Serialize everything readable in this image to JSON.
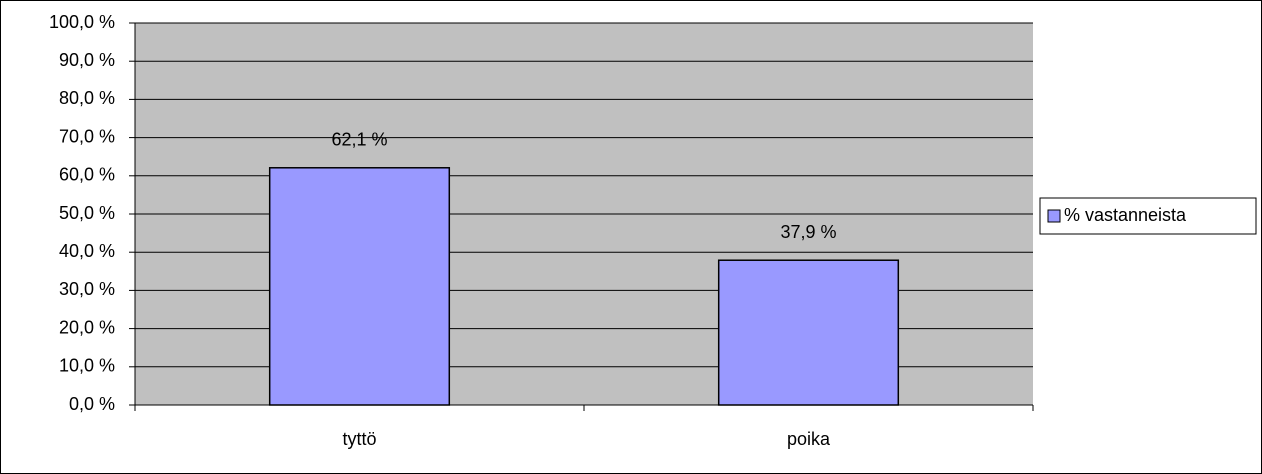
{
  "chart_data": {
    "type": "bar",
    "categories": [
      "tyttö",
      "poika"
    ],
    "series": [
      {
        "name": "% vastanneista",
        "color": "#9999ff",
        "values": [
          62.1,
          37.9
        ],
        "value_labels": [
          "62,1 %",
          "37,9 %"
        ]
      }
    ],
    "ylim": [
      0,
      100
    ],
    "yticks": [
      {
        "value": 0,
        "label": "0,0 %"
      },
      {
        "value": 10,
        "label": "10,0 %"
      },
      {
        "value": 20,
        "label": "20,0 %"
      },
      {
        "value": 30,
        "label": "30,0 %"
      },
      {
        "value": 40,
        "label": "40,0 %"
      },
      {
        "value": 50,
        "label": "50,0 %"
      },
      {
        "value": 60,
        "label": "60,0 %"
      },
      {
        "value": 70,
        "label": "70,0 %"
      },
      {
        "value": 80,
        "label": "80,0 %"
      },
      {
        "value": 90,
        "label": "90,0 %"
      },
      {
        "value": 100,
        "label": "100,0 %"
      }
    ],
    "grid": true,
    "legend": "right"
  }
}
